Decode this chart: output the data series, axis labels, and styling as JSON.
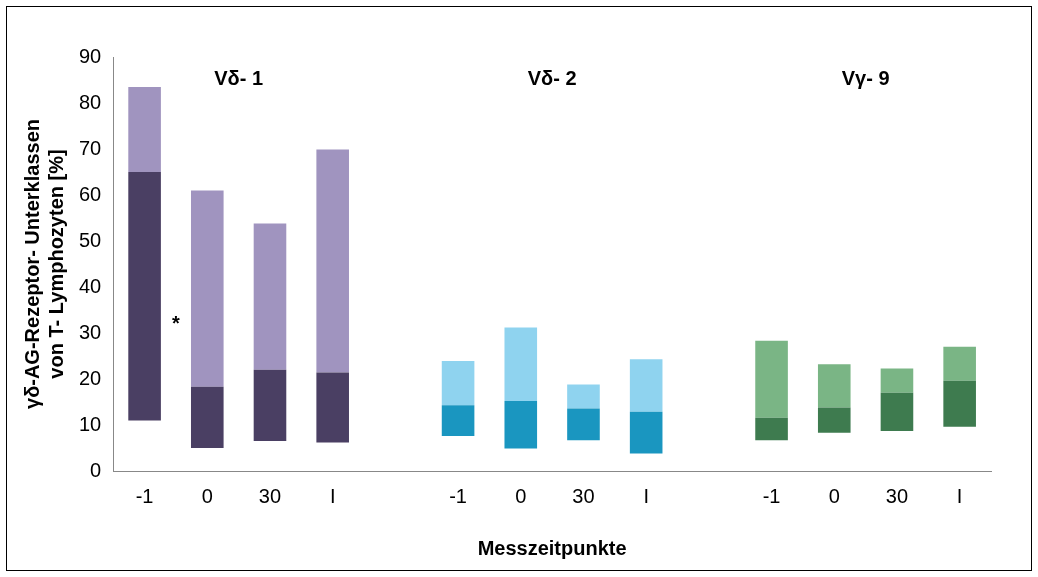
{
  "chart_data": {
    "type": "bar",
    "stacked": true,
    "xlabel": "Messzeitpunkte",
    "ylabel": "γδ-AG-Rezeptor- Unterklassen\nvon T- Lymphozyten [%]",
    "categories": [
      "-1",
      "0",
      "30",
      "I",
      null,
      "-1",
      "0",
      "30",
      "I",
      null,
      "-1",
      "0",
      "30",
      "I"
    ],
    "series": [
      {
        "colors": [
          "#4a3f63",
          "#4a3f63",
          "#4a3f63",
          "#4a3f63",
          null,
          "#1a96c0",
          "#1a96c0",
          "#1a96c0",
          "#1a96c0",
          null,
          "#3e7b4f",
          "#3e7b4f",
          "#3e7b4f",
          "#3e7b4f"
        ],
        "base": [
          11,
          5,
          6.5,
          6.2,
          null,
          7.6,
          4.9,
          6.7,
          3.8,
          null,
          6.7,
          8.3,
          8.7,
          9.6
        ],
        "values": [
          54,
          13.3,
          15.5,
          15.2,
          null,
          6.7,
          10.3,
          6.9,
          9.1,
          null,
          4.9,
          5.5,
          8.3,
          10
        ]
      },
      {
        "colors": [
          "#a094bf",
          "#a094bf",
          "#a094bf",
          "#a094bf",
          null,
          "#8fd3ef",
          "#8fd3ef",
          "#8fd3ef",
          "#8fd3ef",
          null,
          "#7ab585",
          "#7ab585",
          "#7ab585",
          "#7ab585"
        ],
        "values": [
          18.5,
          42.7,
          31.8,
          48.5,
          null,
          9.6,
          16,
          5.2,
          11.4,
          null,
          16.7,
          9.4,
          5.3,
          7.4
        ]
      }
    ],
    "ylim": [
      0,
      90
    ],
    "yticks": [
      0,
      10,
      20,
      30,
      40,
      50,
      60,
      70,
      80,
      90
    ],
    "grid": false,
    "legend": false,
    "annotations": [
      "Vδ- 1",
      "Vδ- 2",
      "Vγ- 9",
      "*"
    ]
  }
}
